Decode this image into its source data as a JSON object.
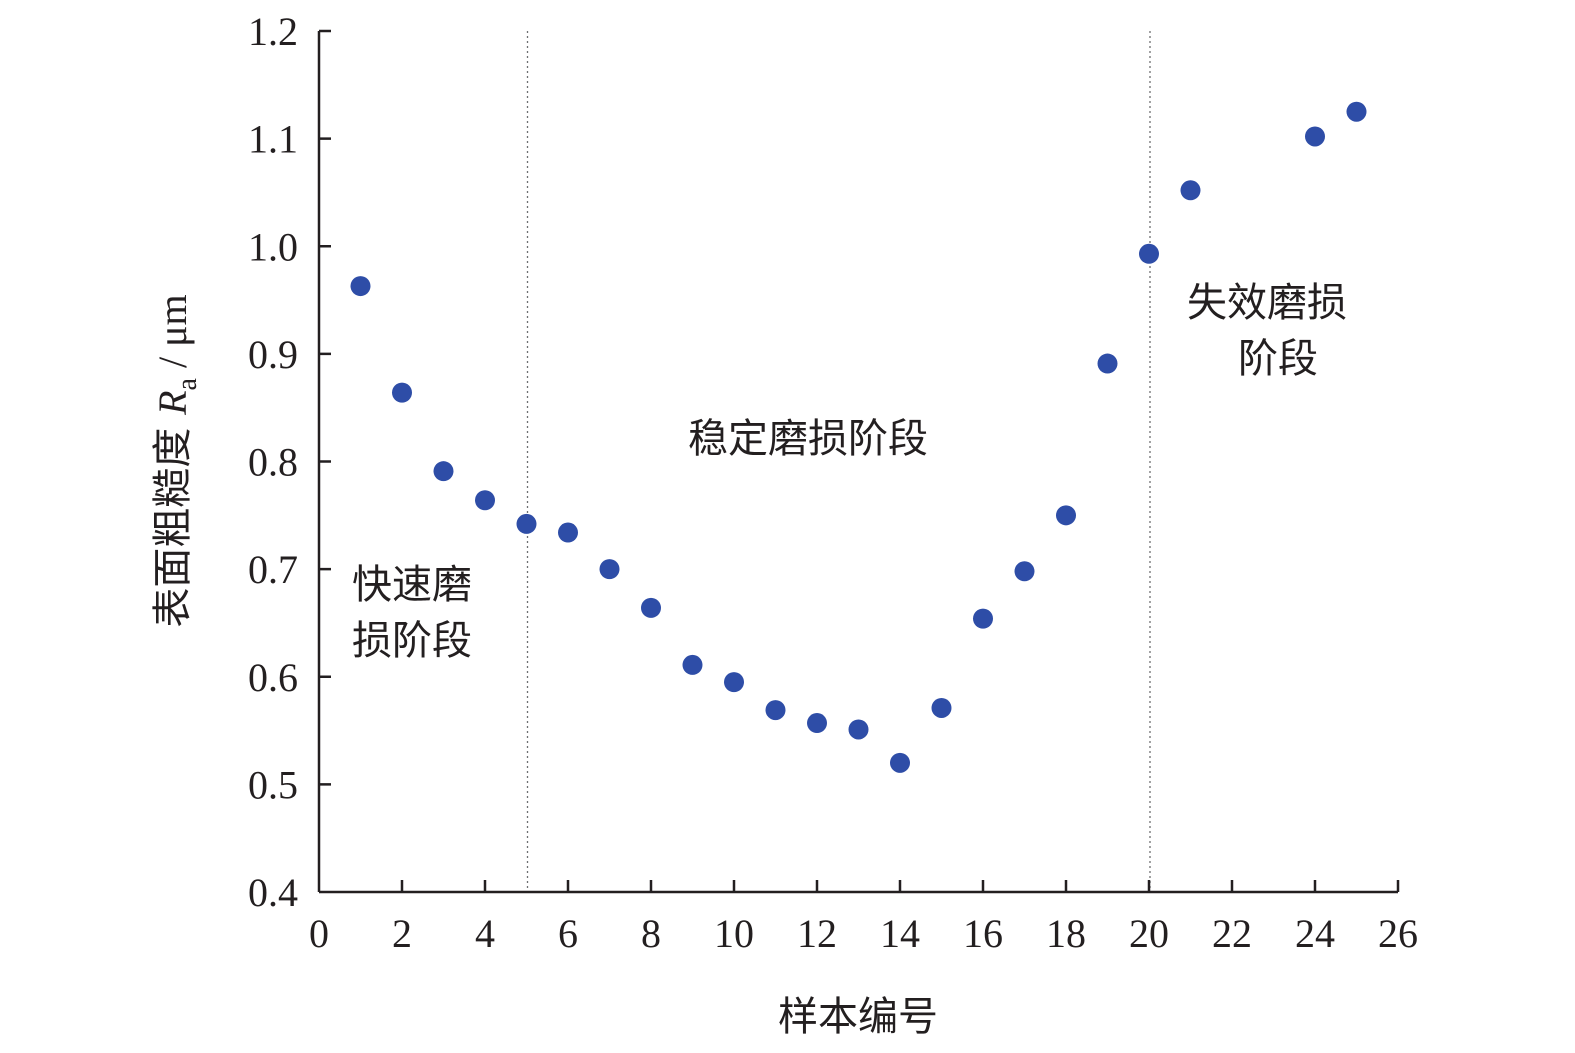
{
  "chart_data": {
    "type": "scatter",
    "xlabel": "样本编号",
    "ylabel": {
      "prefix": "表面粗糙度 ",
      "symbol": "R",
      "subscript": "a",
      "unit": " / μm"
    },
    "xlim": [
      0,
      26
    ],
    "ylim": [
      0.4,
      1.2
    ],
    "xticks": [
      "0",
      "2",
      "4",
      "6",
      "8",
      "10",
      "12",
      "14",
      "16",
      "18",
      "20",
      "22",
      "24",
      "26"
    ],
    "yticks": [
      "0.4",
      "0.5",
      "0.6",
      "0.7",
      "0.8",
      "0.9",
      "1.0",
      "1.1",
      "1.2"
    ],
    "grid": false,
    "marker_color": "#2e4da7",
    "phase_boundaries": [
      5,
      20
    ],
    "annotations": [
      {
        "lines": [
          "快速磨",
          "损阶段"
        ]
      },
      {
        "lines": [
          "稳定磨损阶段"
        ]
      },
      {
        "lines": [
          "失效磨损",
          "阶段"
        ]
      }
    ],
    "series": [
      {
        "points": [
          {
            "x": 1,
            "y": 0.963
          },
          {
            "x": 2,
            "y": 0.864
          },
          {
            "x": 3,
            "y": 0.791
          },
          {
            "x": 4,
            "y": 0.764
          },
          {
            "x": 5,
            "y": 0.742
          },
          {
            "x": 6,
            "y": 0.734
          },
          {
            "x": 7,
            "y": 0.7
          },
          {
            "x": 8,
            "y": 0.664
          },
          {
            "x": 9,
            "y": 0.611
          },
          {
            "x": 10,
            "y": 0.595
          },
          {
            "x": 11,
            "y": 0.569
          },
          {
            "x": 12,
            "y": 0.557
          },
          {
            "x": 13,
            "y": 0.551
          },
          {
            "x": 14,
            "y": 0.52
          },
          {
            "x": 15,
            "y": 0.571
          },
          {
            "x": 16,
            "y": 0.654
          },
          {
            "x": 17,
            "y": 0.698
          },
          {
            "x": 18,
            "y": 0.75
          },
          {
            "x": 19,
            "y": 0.891
          },
          {
            "x": 20,
            "y": 0.993
          },
          {
            "x": 21,
            "y": 1.052
          },
          {
            "x": 24,
            "y": 1.102
          },
          {
            "x": 25,
            "y": 1.125
          }
        ]
      }
    ]
  }
}
